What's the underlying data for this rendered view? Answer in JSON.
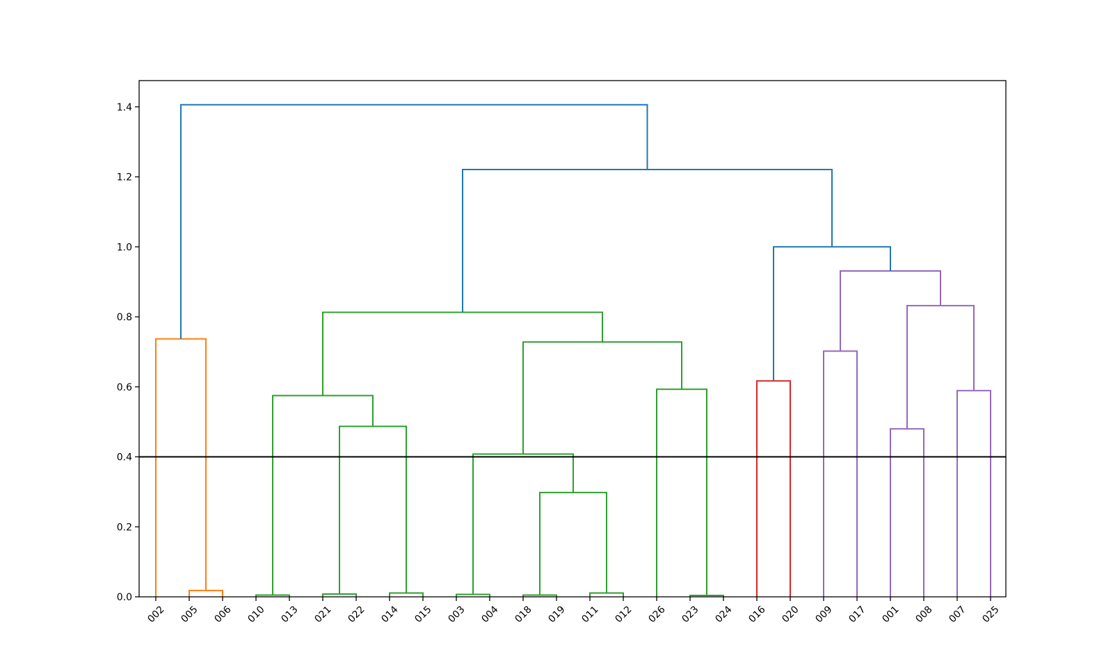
{
  "chart_data": {
    "type": "dendrogram",
    "title": "",
    "xlabel": "",
    "ylabel": "",
    "ylim": [
      0,
      1.475
    ],
    "yticks": [
      {
        "value": 0.0,
        "label": "0.0"
      },
      {
        "value": 0.2,
        "label": "0.2"
      },
      {
        "value": 0.4,
        "label": "0.4"
      },
      {
        "value": 0.6,
        "label": "0.6"
      },
      {
        "value": 0.8,
        "label": "0.8"
      },
      {
        "value": 1.0,
        "label": "1.0"
      },
      {
        "value": 1.2,
        "label": "1.2"
      },
      {
        "value": 1.4,
        "label": "1.4"
      }
    ],
    "leaves": [
      "002",
      "005",
      "006",
      "010",
      "013",
      "021",
      "022",
      "014",
      "015",
      "003",
      "004",
      "018",
      "019",
      "011",
      "012",
      "026",
      "023",
      "024",
      "016",
      "020",
      "009",
      "017",
      "001",
      "008",
      "007",
      "025"
    ],
    "cut_line": {
      "height": 0.4,
      "color": "#000000"
    },
    "colors": {
      "above": "#1f77b4",
      "c_orange": "#ff7f0e",
      "c_green": "#2ca02c",
      "c_red": "#d62728",
      "c_purple": "#9467bd"
    },
    "merges": [
      {
        "id": "m1",
        "left": 1,
        "right": 2,
        "height": 0.018,
        "color": "c_orange"
      },
      {
        "id": "m2",
        "left": 0,
        "right": "m1",
        "height": 0.737,
        "color": "c_orange"
      },
      {
        "id": "m3",
        "left": 3,
        "right": 4,
        "height": 0.005,
        "color": "c_green"
      },
      {
        "id": "m4",
        "left": 5,
        "right": 6,
        "height": 0.008,
        "color": "c_green"
      },
      {
        "id": "m5",
        "left": 7,
        "right": 8,
        "height": 0.011,
        "color": "c_green"
      },
      {
        "id": "m6",
        "left": "m4",
        "right": "m5",
        "height": 0.487,
        "color": "c_green"
      },
      {
        "id": "m7",
        "left": "m3",
        "right": "m6",
        "height": 0.575,
        "color": "c_green"
      },
      {
        "id": "m8",
        "left": 9,
        "right": 10,
        "height": 0.007,
        "color": "c_green"
      },
      {
        "id": "m9",
        "left": 11,
        "right": 12,
        "height": 0.005,
        "color": "c_green"
      },
      {
        "id": "m10",
        "left": 13,
        "right": 14,
        "height": 0.011,
        "color": "c_green"
      },
      {
        "id": "m11",
        "left": "m9",
        "right": "m10",
        "height": 0.298,
        "color": "c_green"
      },
      {
        "id": "m12",
        "left": "m8",
        "right": "m11",
        "height": 0.408,
        "color": "c_green"
      },
      {
        "id": "m13",
        "left": 16,
        "right": 17,
        "height": 0.004,
        "color": "c_green"
      },
      {
        "id": "m14",
        "left": 15,
        "right": "m13",
        "height": 0.593,
        "color": "c_green"
      },
      {
        "id": "m15",
        "left": "m12",
        "right": "m14",
        "height": 0.728,
        "color": "c_green"
      },
      {
        "id": "m16",
        "left": "m7",
        "right": "m15",
        "height": 0.813,
        "color": "c_green"
      },
      {
        "id": "m17",
        "left": 18,
        "right": 19,
        "height": 0.617,
        "color": "c_red"
      },
      {
        "id": "m18",
        "left": 20,
        "right": 21,
        "height": 0.702,
        "color": "c_purple"
      },
      {
        "id": "m19",
        "left": 22,
        "right": 23,
        "height": 0.48,
        "color": "c_purple"
      },
      {
        "id": "m20",
        "left": 24,
        "right": 25,
        "height": 0.589,
        "color": "c_purple"
      },
      {
        "id": "m21",
        "left": "m19",
        "right": "m20",
        "height": 0.832,
        "color": "c_purple"
      },
      {
        "id": "m22",
        "left": "m18",
        "right": "m21",
        "height": 0.931,
        "color": "c_purple"
      },
      {
        "id": "m23",
        "left": "m17",
        "right": "m22",
        "height": 1.0,
        "color": "above"
      },
      {
        "id": "m24",
        "left": "m16",
        "right": "m23",
        "height": 1.221,
        "color": "above"
      },
      {
        "id": "m25",
        "left": "m2",
        "right": "m24",
        "height": 1.406,
        "color": "above"
      }
    ]
  }
}
